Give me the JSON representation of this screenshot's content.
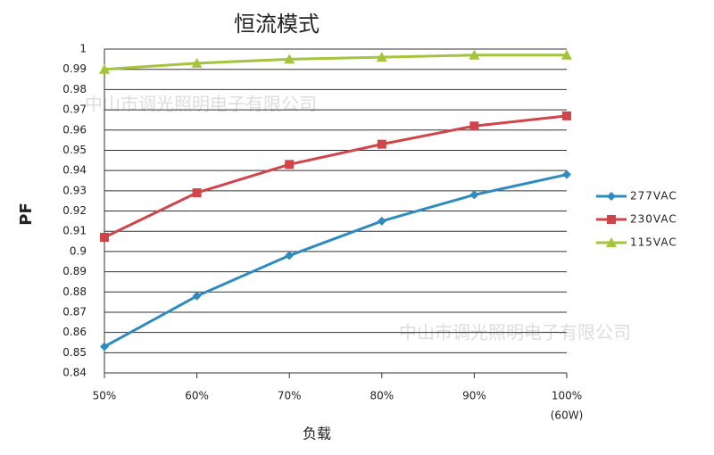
{
  "chart_data": {
    "type": "line",
    "title": "恒流模式",
    "y_label": "PF",
    "x_label": "负载",
    "x_note": "(60W)",
    "watermark": "中山市调光照明电子有限公司",
    "categories": [
      "50%",
      "60%",
      "70%",
      "80%",
      "90%",
      "100%"
    ],
    "series": [
      {
        "name": "277VAC",
        "color": "#2e8bc0",
        "marker": "diamond",
        "values": [
          0.853,
          0.878,
          0.898,
          0.915,
          0.928,
          0.938
        ]
      },
      {
        "name": "230VAC",
        "color": "#d0454a",
        "marker": "square",
        "values": [
          0.907,
          0.929,
          0.943,
          0.953,
          0.962,
          0.967
        ]
      },
      {
        "name": "115VAC",
        "color": "#a4c43c",
        "marker": "triangle",
        "values": [
          0.99,
          0.993,
          0.995,
          0.996,
          0.997,
          0.997
        ]
      }
    ],
    "ylim": [
      0.84,
      1
    ],
    "yticks": [
      0.84,
      0.85,
      0.86,
      0.87,
      0.88,
      0.89,
      0.9,
      0.91,
      0.92,
      0.93,
      0.94,
      0.95,
      0.96,
      0.97,
      0.98,
      0.99,
      1
    ],
    "grid": true,
    "legend": "right"
  }
}
